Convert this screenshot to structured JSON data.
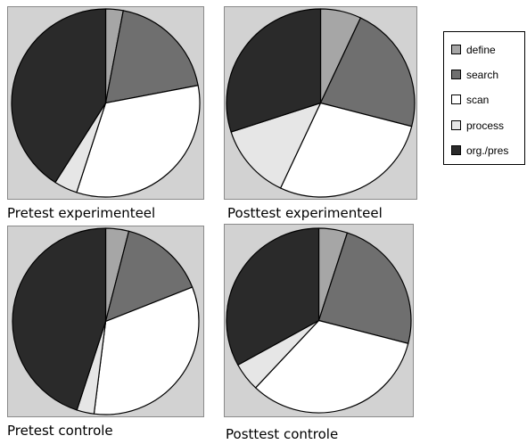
{
  "colors": {
    "define": "#a6a6a6",
    "search": "#6f6f6f",
    "scan": "#ffffff",
    "process": "#e6e6e6",
    "org_pres": "#2a2a2a"
  },
  "legend": [
    {
      "label": "define",
      "color": "#a6a6a6"
    },
    {
      "label": "search",
      "color": "#6f6f6f"
    },
    {
      "label": "scan",
      "color": "#ffffff"
    },
    {
      "label": "process",
      "color": "#e6e6e6"
    },
    {
      "label": "org./pres",
      "color": "#2a2a2a"
    }
  ],
  "chart_data": [
    {
      "type": "pie",
      "title": "Pretest experimenteel",
      "categories": [
        "define",
        "search",
        "scan",
        "process",
        "org./pres"
      ],
      "values": [
        3,
        19,
        33,
        4,
        41
      ]
    },
    {
      "type": "pie",
      "title": "Posttest experimenteel",
      "categories": [
        "define",
        "search",
        "scan",
        "process",
        "org./pres"
      ],
      "values": [
        7,
        22,
        28,
        13,
        30
      ]
    },
    {
      "type": "pie",
      "title": "Pretest controle",
      "categories": [
        "define",
        "search",
        "scan",
        "process",
        "org./pres"
      ],
      "values": [
        4,
        15,
        33,
        3,
        45
      ]
    },
    {
      "type": "pie",
      "title": "Posttest controle",
      "categories": [
        "define",
        "search",
        "scan",
        "process",
        "org./pres"
      ],
      "values": [
        5,
        24,
        33,
        5,
        33
      ]
    }
  ]
}
